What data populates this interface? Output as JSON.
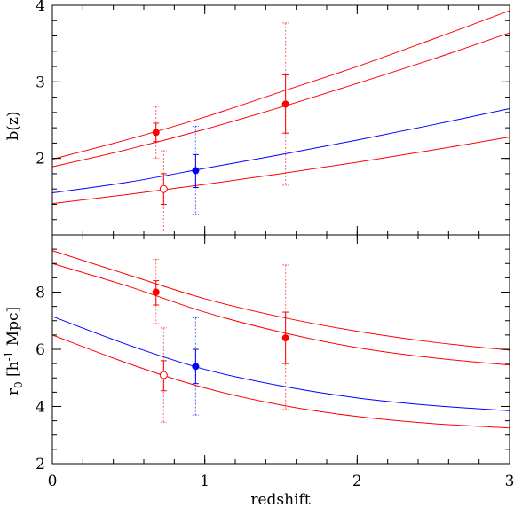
{
  "chart_data": [
    {
      "type": "line",
      "panel": "top",
      "ylabel": "b(z)",
      "xlim": [
        0,
        3
      ],
      "ylim": [
        1,
        4
      ],
      "x_ticks": [
        0,
        1,
        2,
        3
      ],
      "y_ticks": [
        2,
        3,
        4
      ],
      "curves": [
        {
          "color": "#ff0000",
          "x": [
            0,
            0.5,
            1,
            1.5,
            2,
            2.5,
            3
          ],
          "y": [
            1.99,
            2.25,
            2.54,
            2.87,
            3.2,
            3.56,
            3.93
          ]
        },
        {
          "color": "#ff0000",
          "x": [
            0,
            0.5,
            1,
            1.5,
            2,
            2.5,
            3
          ],
          "y": [
            1.89,
            2.12,
            2.38,
            2.67,
            2.98,
            3.3,
            3.64
          ]
        },
        {
          "color": "#0000ff",
          "x": [
            0,
            0.5,
            1,
            1.5,
            2,
            2.5,
            3
          ],
          "y": [
            1.55,
            1.69,
            1.87,
            2.05,
            2.24,
            2.44,
            2.65
          ]
        },
        {
          "color": "#ff0000",
          "x": [
            0,
            0.5,
            1,
            1.5,
            2,
            2.5,
            3
          ],
          "y": [
            1.41,
            1.53,
            1.66,
            1.8,
            1.95,
            2.11,
            2.28
          ]
        }
      ],
      "points": [
        {
          "x": 0.68,
          "y": 2.34,
          "color": "#ff0000",
          "marker": "filled",
          "err_solid": [
            2.22,
            2.46
          ],
          "err_dotted": [
            2.0,
            2.68
          ]
        },
        {
          "x": 0.73,
          "y": 1.6,
          "color": "#ff0000",
          "marker": "open",
          "err_solid": [
            1.4,
            1.8
          ],
          "err_dotted": [
            1.05,
            2.1
          ]
        },
        {
          "x": 0.94,
          "y": 1.84,
          "color": "#0000ff",
          "marker": "filled",
          "err_solid": [
            1.62,
            2.05
          ],
          "err_dotted": [
            1.27,
            2.42
          ]
        },
        {
          "x": 1.53,
          "y": 2.71,
          "color": "#ff0000",
          "marker": "filled",
          "err_solid": [
            2.33,
            3.09
          ],
          "err_dotted": [
            1.65,
            3.77
          ]
        }
      ]
    },
    {
      "type": "line",
      "panel": "bottom",
      "xlabel": "redshift",
      "ylabel_main": "r",
      "ylabel_sub": "0",
      "ylabel_unit_left": " [h",
      "ylabel_unit_sup": "-1",
      "ylabel_unit_right": " Mpc]",
      "xlim": [
        0,
        3
      ],
      "ylim": [
        2,
        10
      ],
      "x_ticks": [
        0,
        1,
        2,
        3
      ],
      "y_ticks": [
        2,
        4,
        6,
        8
      ],
      "curves": [
        {
          "color": "#ff0000",
          "x": [
            0,
            0.5,
            1,
            1.5,
            2,
            2.5,
            3
          ],
          "y": [
            9.45,
            8.6,
            7.77,
            7.13,
            6.63,
            6.25,
            5.97
          ]
        },
        {
          "color": "#ff0000",
          "x": [
            0,
            0.5,
            1,
            1.5,
            2,
            2.5,
            3
          ],
          "y": [
            9.0,
            8.2,
            7.3,
            6.6,
            6.06,
            5.7,
            5.45
          ]
        },
        {
          "color": "#0000ff",
          "x": [
            0,
            0.5,
            1,
            1.5,
            2,
            2.5,
            3
          ],
          "y": [
            7.15,
            6.15,
            5.3,
            4.72,
            4.3,
            4.03,
            3.85
          ]
        },
        {
          "color": "#ff0000",
          "x": [
            0,
            0.5,
            1,
            1.5,
            2,
            2.5,
            3
          ],
          "y": [
            6.5,
            5.5,
            4.65,
            4.05,
            3.65,
            3.4,
            3.25
          ]
        }
      ],
      "points": [
        {
          "x": 0.68,
          "y": 8.0,
          "color": "#ff0000",
          "marker": "filled",
          "err_solid": [
            7.55,
            8.4
          ],
          "err_dotted": [
            6.9,
            9.15
          ]
        },
        {
          "x": 0.73,
          "y": 5.1,
          "color": "#ff0000",
          "marker": "open",
          "err_solid": [
            4.55,
            5.6
          ],
          "err_dotted": [
            3.45,
            6.75
          ]
        },
        {
          "x": 0.94,
          "y": 5.4,
          "color": "#0000ff",
          "marker": "filled",
          "err_solid": [
            4.8,
            6.0
          ],
          "err_dotted": [
            3.7,
            7.1
          ]
        },
        {
          "x": 1.53,
          "y": 6.4,
          "color": "#ff0000",
          "marker": "filled",
          "err_solid": [
            5.5,
            7.3
          ],
          "err_dotted": [
            3.9,
            8.95
          ]
        }
      ]
    }
  ]
}
